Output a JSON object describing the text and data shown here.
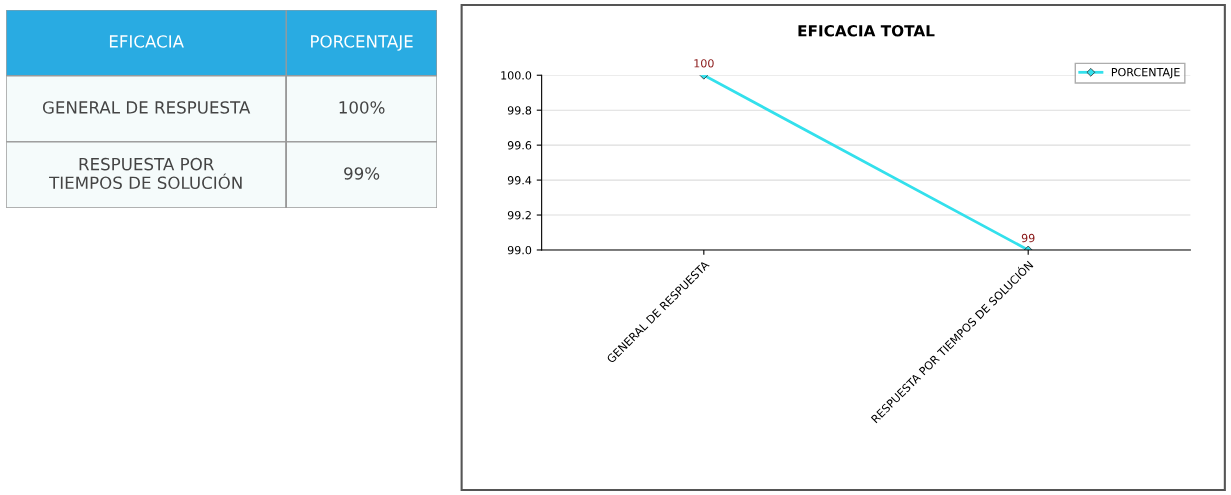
{
  "chart_data": [
    {
      "type": "other",
      "annotations": [
        "EFICACIA",
        "PORCENTAJE",
        "GENERAL DE RESPUESTA",
        "100%",
        "RESPUESTA POR\nTIEMPOS DE SOLUCIÓN",
        "99%"
      ]
    },
    {
      "type": "line",
      "title": "EFICACIA TOTAL",
      "categories": [
        "GENERAL DE RESPUESTA",
        "RESPUESTA POR TIEMPOS DE SOLUCIÓN"
      ],
      "series": [
        {
          "name": "PORCENTAJE",
          "color": "#33e0ec",
          "values": [
            100,
            99
          ]
        }
      ],
      "ylim": [
        99.0,
        100.0
      ],
      "yticks": [
        {
          "value": 99.0,
          "label": "99.0"
        },
        {
          "value": 99.2,
          "label": "99.2"
        },
        {
          "value": 99.4,
          "label": "99.4"
        },
        {
          "value": 99.6,
          "label": "99.6"
        },
        {
          "value": 99.8,
          "label": "99.8"
        },
        {
          "value": 100.0,
          "label": "100.0"
        }
      ],
      "grid": "y",
      "legend": "top right",
      "marker": "diamond",
      "line_style": "solid",
      "data_labels": true
    }
  ]
}
